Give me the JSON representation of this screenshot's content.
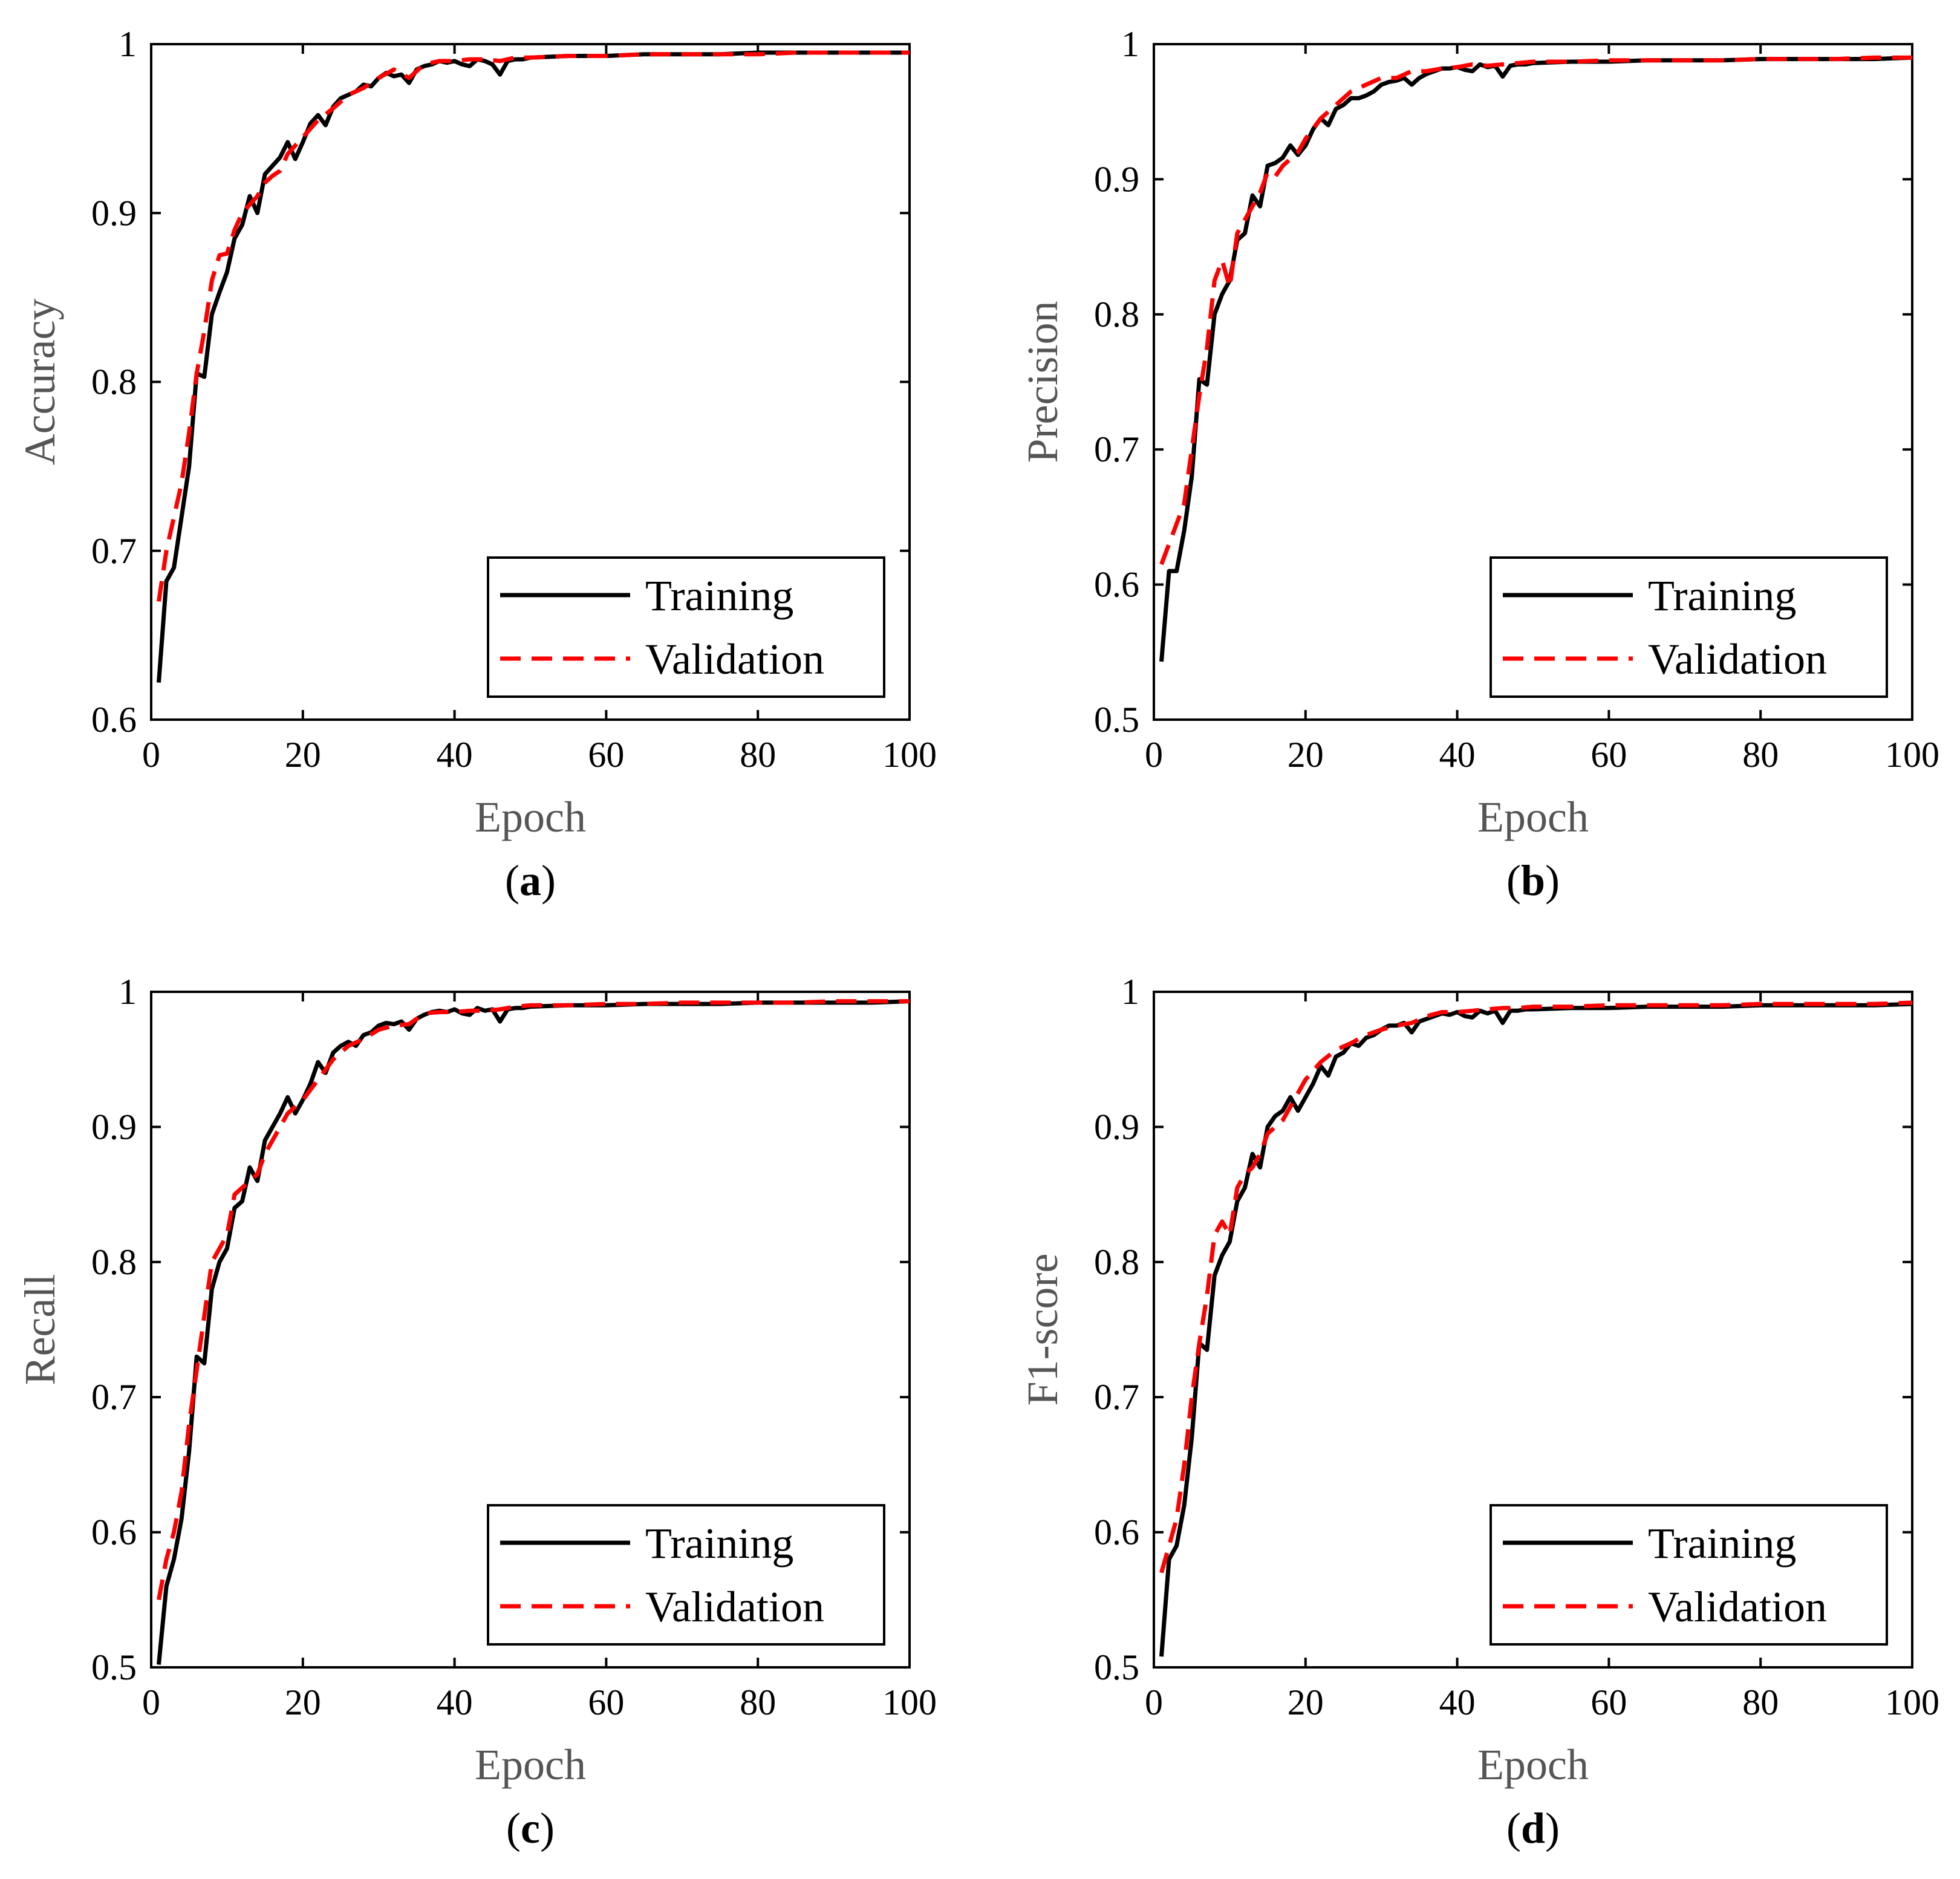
{
  "figure": {
    "panels": [
      "a",
      "b",
      "c",
      "d"
    ]
  },
  "colors": {
    "training": "#000000",
    "validation": "#ff0000",
    "axis_label": "#555555",
    "axis": "#000000",
    "background": "#ffffff"
  },
  "chart_data": [
    {
      "id": "a",
      "type": "line",
      "panel_letter": "a",
      "xlabel": "Epoch",
      "ylabel": "Accuracy",
      "xlim": [
        0,
        100
      ],
      "ylim": [
        0.6,
        1
      ],
      "xticks": [
        0,
        20,
        40,
        60,
        80,
        100
      ],
      "xtick_labels": [
        "0",
        "20",
        "40",
        "60",
        "80",
        "100"
      ],
      "yticks": [
        0.6,
        0.7,
        0.8,
        0.9,
        1
      ],
      "ytick_labels": [
        "0.6",
        "0.7",
        "0.8",
        "0.9",
        "1"
      ],
      "legend_position": "bottom-right",
      "series": [
        {
          "name": "Training",
          "style": "solid",
          "x": [
            1,
            2,
            3,
            4,
            5,
            6,
            7,
            8,
            9,
            10,
            11,
            12,
            13,
            14,
            15,
            16,
            17,
            18,
            19,
            20,
            21,
            22,
            23,
            24,
            25,
            26,
            27,
            28,
            29,
            30,
            31,
            32,
            33,
            34,
            35,
            36,
            37,
            38,
            39,
            40,
            41,
            42,
            43,
            44,
            45,
            46,
            47,
            48,
            49,
            50,
            55,
            60,
            65,
            70,
            75,
            80,
            85,
            90,
            95,
            100
          ],
          "values": [
            0.622,
            0.682,
            0.69,
            0.72,
            0.75,
            0.805,
            0.803,
            0.84,
            0.853,
            0.865,
            0.885,
            0.893,
            0.91,
            0.9,
            0.923,
            0.928,
            0.933,
            0.942,
            0.932,
            0.942,
            0.953,
            0.958,
            0.952,
            0.963,
            0.968,
            0.97,
            0.972,
            0.976,
            0.975,
            0.98,
            0.983,
            0.981,
            0.982,
            0.977,
            0.985,
            0.987,
            0.988,
            0.99,
            0.989,
            0.99,
            0.988,
            0.987,
            0.991,
            0.99,
            0.988,
            0.982,
            0.99,
            0.991,
            0.991,
            0.992,
            0.993,
            0.993,
            0.994,
            0.994,
            0.994,
            0.995,
            0.995,
            0.995,
            0.995,
            0.995
          ]
        },
        {
          "name": "Validation",
          "style": "dashed",
          "x": [
            1,
            2,
            3,
            4,
            5,
            6,
            7,
            8,
            9,
            10,
            11,
            12,
            13,
            14,
            15,
            16,
            17,
            18,
            19,
            20,
            22,
            24,
            26,
            28,
            30,
            32,
            34,
            36,
            38,
            40,
            42,
            44,
            46,
            48,
            50,
            55,
            60,
            65,
            70,
            75,
            80,
            85,
            90,
            95,
            100
          ],
          "values": [
            0.67,
            0.7,
            0.72,
            0.74,
            0.77,
            0.805,
            0.83,
            0.86,
            0.875,
            0.876,
            0.89,
            0.9,
            0.905,
            0.91,
            0.918,
            0.922,
            0.925,
            0.935,
            0.94,
            0.945,
            0.955,
            0.962,
            0.97,
            0.974,
            0.98,
            0.985,
            0.98,
            0.988,
            0.99,
            0.99,
            0.991,
            0.991,
            0.99,
            0.992,
            0.992,
            0.993,
            0.993,
            0.994,
            0.994,
            0.994,
            0.994,
            0.995,
            0.995,
            0.995,
            0.995
          ]
        }
      ]
    },
    {
      "id": "b",
      "type": "line",
      "panel_letter": "b",
      "xlabel": "Epoch",
      "ylabel": "Precision",
      "xlim": [
        0,
        100
      ],
      "ylim": [
        0.5,
        1
      ],
      "xticks": [
        0,
        20,
        40,
        60,
        80,
        100
      ],
      "xtick_labels": [
        "0",
        "20",
        "40",
        "60",
        "80",
        "100"
      ],
      "yticks": [
        0.5,
        0.6,
        0.7,
        0.8,
        0.9,
        1
      ],
      "ytick_labels": [
        "0.5",
        "0.6",
        "0.7",
        "0.8",
        "0.9",
        "1"
      ],
      "legend_position": "bottom-right",
      "series": [
        {
          "name": "Training",
          "style": "solid",
          "x": [
            1,
            2,
            3,
            4,
            5,
            6,
            7,
            8,
            9,
            10,
            11,
            12,
            13,
            14,
            15,
            16,
            17,
            18,
            19,
            20,
            21,
            22,
            23,
            24,
            25,
            26,
            27,
            28,
            29,
            30,
            31,
            32,
            33,
            34,
            35,
            36,
            37,
            38,
            39,
            40,
            41,
            42,
            43,
            44,
            45,
            46,
            47,
            48,
            49,
            50,
            55,
            60,
            65,
            70,
            75,
            80,
            85,
            90,
            95,
            100
          ],
          "values": [
            0.543,
            0.61,
            0.61,
            0.64,
            0.68,
            0.752,
            0.748,
            0.8,
            0.815,
            0.825,
            0.855,
            0.86,
            0.888,
            0.88,
            0.91,
            0.912,
            0.916,
            0.925,
            0.918,
            0.925,
            0.937,
            0.945,
            0.94,
            0.952,
            0.955,
            0.96,
            0.96,
            0.962,
            0.965,
            0.97,
            0.972,
            0.973,
            0.975,
            0.97,
            0.975,
            0.978,
            0.98,
            0.982,
            0.982,
            0.983,
            0.981,
            0.98,
            0.985,
            0.983,
            0.984,
            0.976,
            0.984,
            0.985,
            0.985,
            0.986,
            0.987,
            0.987,
            0.988,
            0.988,
            0.988,
            0.989,
            0.989,
            0.989,
            0.989,
            0.99
          ]
        },
        {
          "name": "Validation",
          "style": "dashed",
          "x": [
            1,
            2,
            3,
            4,
            5,
            6,
            7,
            8,
            9,
            10,
            11,
            12,
            13,
            14,
            15,
            16,
            17,
            18,
            19,
            20,
            22,
            24,
            26,
            28,
            30,
            32,
            34,
            36,
            38,
            40,
            42,
            44,
            46,
            48,
            50,
            55,
            60,
            65,
            70,
            75,
            80,
            85,
            90,
            95,
            100
          ],
          "values": [
            0.615,
            0.63,
            0.645,
            0.66,
            0.7,
            0.74,
            0.775,
            0.825,
            0.84,
            0.82,
            0.86,
            0.87,
            0.88,
            0.89,
            0.905,
            0.902,
            0.91,
            0.915,
            0.92,
            0.93,
            0.945,
            0.955,
            0.965,
            0.97,
            0.975,
            0.975,
            0.98,
            0.98,
            0.982,
            0.983,
            0.985,
            0.984,
            0.985,
            0.986,
            0.987,
            0.987,
            0.988,
            0.988,
            0.988,
            0.988,
            0.989,
            0.989,
            0.989,
            0.99,
            0.99
          ]
        }
      ]
    },
    {
      "id": "c",
      "type": "line",
      "panel_letter": "c",
      "xlabel": "Epoch",
      "ylabel": "Recall",
      "xlim": [
        0,
        100
      ],
      "ylim": [
        0.5,
        1
      ],
      "xticks": [
        0,
        20,
        40,
        60,
        80,
        100
      ],
      "xtick_labels": [
        "0",
        "20",
        "40",
        "60",
        "80",
        "100"
      ],
      "yticks": [
        0.5,
        0.6,
        0.7,
        0.8,
        0.9,
        1
      ],
      "ytick_labels": [
        "0.5",
        "0.6",
        "0.7",
        "0.8",
        "0.9",
        "1"
      ],
      "legend_position": "bottom-right",
      "series": [
        {
          "name": "Training",
          "style": "solid",
          "x": [
            1,
            2,
            3,
            4,
            5,
            6,
            7,
            8,
            9,
            10,
            11,
            12,
            13,
            14,
            15,
            16,
            17,
            18,
            19,
            20,
            21,
            22,
            23,
            24,
            25,
            26,
            27,
            28,
            29,
            30,
            31,
            32,
            33,
            34,
            35,
            36,
            37,
            38,
            39,
            40,
            41,
            42,
            43,
            44,
            45,
            46,
            47,
            48,
            49,
            50,
            55,
            60,
            65,
            70,
            75,
            80,
            85,
            90,
            95,
            100
          ],
          "values": [
            0.502,
            0.56,
            0.58,
            0.61,
            0.66,
            0.73,
            0.725,
            0.78,
            0.8,
            0.81,
            0.84,
            0.845,
            0.87,
            0.86,
            0.89,
            0.9,
            0.91,
            0.922,
            0.91,
            0.92,
            0.932,
            0.948,
            0.94,
            0.955,
            0.96,
            0.963,
            0.96,
            0.968,
            0.97,
            0.975,
            0.977,
            0.976,
            0.978,
            0.972,
            0.98,
            0.983,
            0.985,
            0.986,
            0.985,
            0.987,
            0.984,
            0.983,
            0.988,
            0.986,
            0.987,
            0.978,
            0.987,
            0.988,
            0.988,
            0.989,
            0.99,
            0.99,
            0.991,
            0.991,
            0.991,
            0.992,
            0.992,
            0.992,
            0.992,
            0.993
          ]
        },
        {
          "name": "Validation",
          "style": "dashed",
          "x": [
            1,
            2,
            3,
            4,
            5,
            6,
            7,
            8,
            9,
            10,
            11,
            12,
            13,
            14,
            15,
            16,
            17,
            18,
            19,
            20,
            22,
            24,
            26,
            28,
            30,
            32,
            34,
            36,
            38,
            40,
            42,
            44,
            46,
            48,
            50,
            55,
            60,
            65,
            70,
            75,
            80,
            85,
            90,
            95,
            100
          ],
          "values": [
            0.55,
            0.58,
            0.6,
            0.63,
            0.68,
            0.72,
            0.76,
            0.8,
            0.81,
            0.82,
            0.85,
            0.855,
            0.86,
            0.865,
            0.88,
            0.89,
            0.9,
            0.91,
            0.915,
            0.92,
            0.935,
            0.95,
            0.96,
            0.965,
            0.972,
            0.975,
            0.976,
            0.984,
            0.985,
            0.985,
            0.986,
            0.986,
            0.987,
            0.989,
            0.99,
            0.99,
            0.991,
            0.991,
            0.992,
            0.992,
            0.992,
            0.992,
            0.993,
            0.993,
            0.993
          ]
        }
      ]
    },
    {
      "id": "d",
      "type": "line",
      "panel_letter": "d",
      "xlabel": "Epoch",
      "ylabel": "F1-score",
      "xlim": [
        0,
        100
      ],
      "ylim": [
        0.5,
        1
      ],
      "xticks": [
        0,
        20,
        40,
        60,
        80,
        100
      ],
      "xtick_labels": [
        "0",
        "20",
        "40",
        "60",
        "80",
        "100"
      ],
      "yticks": [
        0.5,
        0.6,
        0.7,
        0.8,
        0.9,
        1
      ],
      "ytick_labels": [
        "0.5",
        "0.6",
        "0.7",
        "0.8",
        "0.9",
        "1"
      ],
      "legend_position": "bottom-right",
      "series": [
        {
          "name": "Training",
          "style": "solid",
          "x": [
            1,
            2,
            3,
            4,
            5,
            6,
            7,
            8,
            9,
            10,
            11,
            12,
            13,
            14,
            15,
            16,
            17,
            18,
            19,
            20,
            21,
            22,
            23,
            24,
            25,
            26,
            27,
            28,
            29,
            30,
            31,
            32,
            33,
            34,
            35,
            36,
            37,
            38,
            39,
            40,
            41,
            42,
            43,
            44,
            45,
            46,
            47,
            48,
            49,
            50,
            55,
            60,
            65,
            70,
            75,
            80,
            85,
            90,
            95,
            100
          ],
          "values": [
            0.508,
            0.58,
            0.59,
            0.62,
            0.67,
            0.74,
            0.735,
            0.79,
            0.805,
            0.815,
            0.845,
            0.855,
            0.88,
            0.87,
            0.9,
            0.908,
            0.912,
            0.922,
            0.912,
            0.922,
            0.932,
            0.945,
            0.938,
            0.952,
            0.955,
            0.962,
            0.96,
            0.966,
            0.968,
            0.972,
            0.975,
            0.975,
            0.977,
            0.97,
            0.978,
            0.98,
            0.982,
            0.984,
            0.983,
            0.985,
            0.982,
            0.981,
            0.986,
            0.984,
            0.986,
            0.977,
            0.986,
            0.986,
            0.987,
            0.987,
            0.988,
            0.988,
            0.989,
            0.989,
            0.989,
            0.99,
            0.99,
            0.99,
            0.99,
            0.991
          ]
        },
        {
          "name": "Validation",
          "style": "dashed",
          "x": [
            1,
            2,
            3,
            4,
            5,
            6,
            7,
            8,
            9,
            10,
            11,
            12,
            13,
            14,
            15,
            16,
            17,
            18,
            19,
            20,
            22,
            24,
            26,
            28,
            30,
            32,
            34,
            36,
            38,
            40,
            42,
            44,
            46,
            48,
            50,
            55,
            60,
            65,
            70,
            75,
            80,
            85,
            90,
            95,
            100
          ],
          "values": [
            0.57,
            0.59,
            0.61,
            0.65,
            0.7,
            0.74,
            0.775,
            0.82,
            0.83,
            0.82,
            0.855,
            0.865,
            0.87,
            0.88,
            0.895,
            0.9,
            0.905,
            0.915,
            0.925,
            0.935,
            0.948,
            0.957,
            0.962,
            0.968,
            0.972,
            0.975,
            0.977,
            0.982,
            0.985,
            0.985,
            0.986,
            0.987,
            0.988,
            0.988,
            0.989,
            0.989,
            0.99,
            0.99,
            0.99,
            0.99,
            0.991,
            0.991,
            0.991,
            0.991,
            0.992
          ]
        }
      ]
    }
  ]
}
